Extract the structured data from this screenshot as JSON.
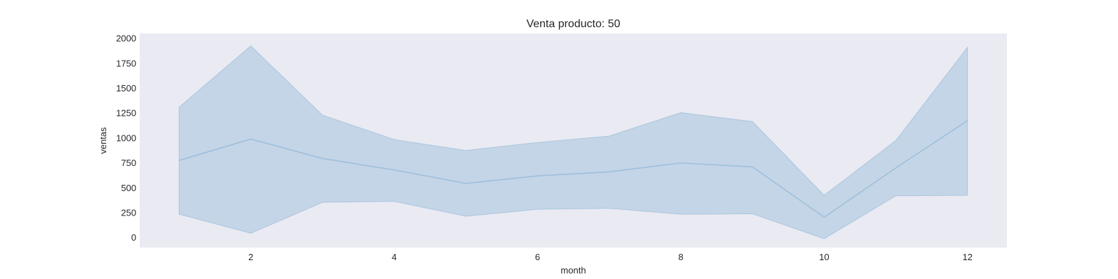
{
  "chart_data": {
    "type": "area",
    "title": "Venta producto: 50",
    "xlabel": "month",
    "ylabel": "ventas",
    "xlim": [
      0.45,
      12.55
    ],
    "ylim": [
      -100,
      2050
    ],
    "xticks": [
      2,
      4,
      6,
      8,
      10,
      12
    ],
    "yticks": [
      0,
      250,
      500,
      750,
      1000,
      1250,
      1500,
      1750,
      2000
    ],
    "grid": false,
    "legend": "none",
    "x": [
      1,
      2,
      3,
      4,
      5,
      6,
      7,
      8,
      9,
      10,
      11,
      12
    ],
    "series": [
      {
        "values": [
          775,
          990,
          795,
          680,
          545,
          620,
          660,
          750,
          710,
          205,
          700,
          1175
        ],
        "lower": [
          235,
          45,
          355,
          365,
          215,
          285,
          295,
          235,
          240,
          -10,
          420,
          425
        ],
        "upper": [
          1310,
          1925,
          1230,
          985,
          875,
          955,
          1020,
          1255,
          1165,
          425,
          975,
          1910
        ],
        "line_color": "#9ebfdc",
        "band_color": "#aac6df"
      }
    ],
    "colors": {
      "plot_background": "#eaeaf2",
      "text": "#262626"
    }
  }
}
